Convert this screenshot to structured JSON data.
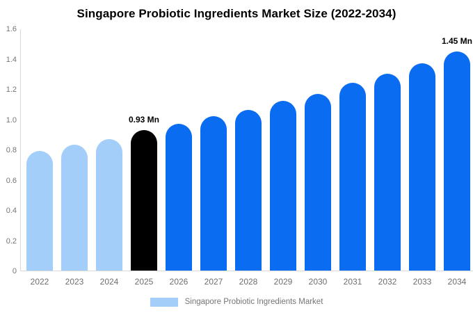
{
  "title": "Singapore Probiotic Ingredients Market Size (2022-2034)",
  "legend": {
    "label": "Singapore Probiotic Ingredients Market",
    "swatch_color": "#a2cef9"
  },
  "colors": {
    "historical_bar": "#a2cef9",
    "base_year_bar": "#000000",
    "forecast_bar": "#0a6cf0",
    "axis_line": "#d9d9d9",
    "y_tick_text": "#757575",
    "x_tick_text": "#6e6e6e",
    "data_label_text": "#000000"
  },
  "chart_data": {
    "type": "bar",
    "title": "Singapore Probiotic Ingredients Market Size (2022-2034)",
    "xlabel": "",
    "ylabel": "",
    "categories": [
      "2022",
      "2023",
      "2024",
      "2025",
      "2026",
      "2027",
      "2028",
      "2029",
      "2030",
      "2031",
      "2032",
      "2033",
      "2034"
    ],
    "values": [
      0.79,
      0.83,
      0.87,
      0.93,
      0.97,
      1.02,
      1.06,
      1.12,
      1.17,
      1.24,
      1.3,
      1.37,
      1.45
    ],
    "unit": "Mn",
    "bar_colors": [
      "#a2cef9",
      "#a2cef9",
      "#a2cef9",
      "#000000",
      "#0a6cf0",
      "#0a6cf0",
      "#0a6cf0",
      "#0a6cf0",
      "#0a6cf0",
      "#0a6cf0",
      "#0a6cf0",
      "#0a6cf0",
      "#0a6cf0"
    ],
    "data_labels": [
      null,
      null,
      null,
      "0.93 Mn",
      null,
      null,
      null,
      null,
      null,
      null,
      null,
      null,
      "1.45 Mn"
    ],
    "ylim": [
      0,
      1.6
    ],
    "ytick_labels": [
      "0",
      "0.2",
      "0.4",
      "0.6",
      "0.8",
      "1.0",
      "1.2",
      "1.4",
      "1.6"
    ],
    "grid": false,
    "legend_position": "bottom"
  }
}
